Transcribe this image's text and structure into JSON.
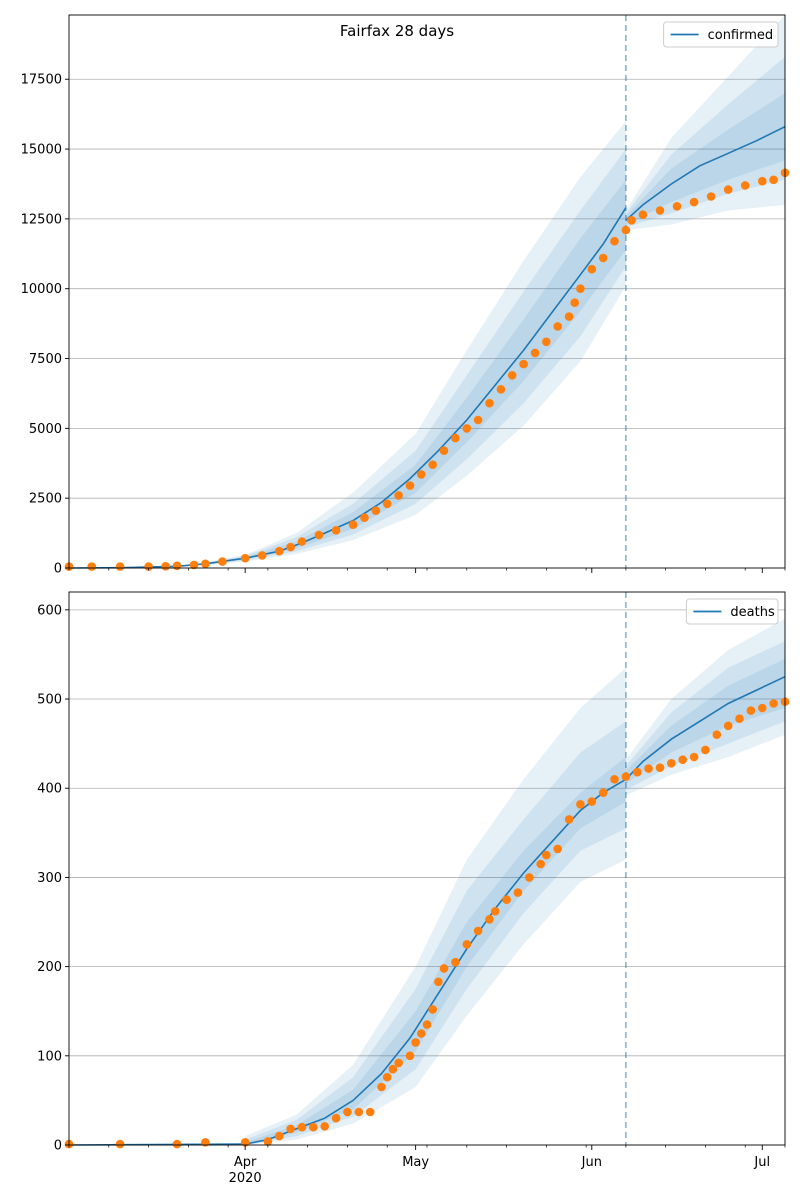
{
  "title": "Fairfax 28 days",
  "colors": {
    "model": "#1f77b4",
    "observed": "#ff7f0e",
    "band": "#1f77b4",
    "divider": "#1f77b4",
    "grid": "#b0b0b0"
  },
  "chart_data": [
    {
      "type": "line",
      "title": "Fairfax 28 days",
      "legend": {
        "label": "confirmed",
        "placement": "top-right"
      },
      "x_range": [
        "2020-03-01",
        "2020-07-05"
      ],
      "x_ticks": [
        {
          "date": "2020-04-01",
          "label": "Apr",
          "sublabel": "2020"
        },
        {
          "date": "2020-05-01",
          "label": "May",
          "sublabel": ""
        },
        {
          "date": "2020-06-01",
          "label": "Jun",
          "sublabel": ""
        },
        {
          "date": "2020-07-01",
          "label": "Jul",
          "sublabel": ""
        }
      ],
      "y_range": [
        0,
        19800
      ],
      "y_ticks": [
        {
          "value": 0,
          "label": "0"
        },
        {
          "value": 2500,
          "label": "2500"
        },
        {
          "value": 5000,
          "label": "5000"
        },
        {
          "value": 7500,
          "label": "7500"
        },
        {
          "value": 10000,
          "label": "10000"
        },
        {
          "value": 12500,
          "label": "12500"
        },
        {
          "value": 15000,
          "label": "15000"
        },
        {
          "value": 17500,
          "label": "17500"
        }
      ],
      "grid": "horizontal",
      "forecast_date": "2020-06-07",
      "model": {
        "fit": [
          [
            "2020-03-01",
            0
          ],
          [
            "2020-03-10",
            10
          ],
          [
            "2020-03-20",
            60
          ],
          [
            "2020-03-25",
            150
          ],
          [
            "2020-04-01",
            350
          ],
          [
            "2020-04-07",
            600
          ],
          [
            "2020-04-11",
            900
          ],
          [
            "2020-04-15",
            1250
          ],
          [
            "2020-04-20",
            1700
          ],
          [
            "2020-04-25",
            2350
          ],
          [
            "2020-04-30",
            3200
          ],
          [
            "2020-05-05",
            4200
          ],
          [
            "2020-05-10",
            5300
          ],
          [
            "2020-05-15",
            6550
          ],
          [
            "2020-05-20",
            7800
          ],
          [
            "2020-05-25",
            9150
          ],
          [
            "2020-05-30",
            10500
          ],
          [
            "2020-06-03",
            11600
          ],
          [
            "2020-06-07",
            12900
          ]
        ],
        "forecast": [
          [
            "2020-06-07",
            12450
          ],
          [
            "2020-06-10",
            13000
          ],
          [
            "2020-06-15",
            13750
          ],
          [
            "2020-06-20",
            14400
          ],
          [
            "2020-06-25",
            14850
          ],
          [
            "2020-06-30",
            15300
          ],
          [
            "2020-07-05",
            15800
          ]
        ],
        "bands": [
          {
            "segment": "fit",
            "x": [
              "2020-03-25",
              "2020-04-01",
              "2020-04-10",
              "2020-04-20",
              "2020-05-01",
              "2020-05-10",
              "2020-05-20",
              "2020-05-30",
              "2020-06-07"
            ],
            "inner": {
              "lo": [
                130,
                310,
                700,
                1400,
                2700,
                4500,
                6700,
                9200,
                11400
              ],
              "hi": [
                170,
                390,
                950,
                2000,
                3700,
                6100,
                8900,
                11800,
                13900
              ]
            },
            "mid": {
              "lo": [
                110,
                270,
                600,
                1200,
                2300,
                3900,
                5900,
                8300,
                10800
              ],
              "hi": [
                190,
                430,
                1100,
                2300,
                4200,
                6900,
                9900,
                12800,
                15000
              ]
            },
            "outer": {
              "lo": [
                90,
                230,
                500,
                1000,
                1900,
                3300,
                5100,
                7400,
                10100
              ],
              "hi": [
                210,
                470,
                1250,
                2700,
                4800,
                7800,
                11000,
                14000,
                16000
              ]
            }
          },
          {
            "segment": "forecast",
            "x": [
              "2020-06-07",
              "2020-06-15",
              "2020-06-25",
              "2020-07-05"
            ],
            "inner": {
              "lo": [
                12300,
                13100,
                13900,
                14600
              ],
              "hi": [
                12600,
                14300,
                15700,
                17000
              ]
            },
            "mid": {
              "lo": [
                12200,
                12700,
                13400,
                13900
              ],
              "hi": [
                12700,
                14800,
                16600,
                18300
              ]
            },
            "outer": {
              "lo": [
                12100,
                12300,
                12800,
                13000
              ],
              "hi": [
                12800,
                15400,
                17600,
                19800
              ]
            }
          }
        ]
      },
      "observed": [
        [
          "2020-03-01",
          50
        ],
        [
          "2020-03-05",
          50
        ],
        [
          "2020-03-10",
          50
        ],
        [
          "2020-03-15",
          50
        ],
        [
          "2020-03-18",
          60
        ],
        [
          "2020-03-20",
          80
        ],
        [
          "2020-03-23",
          110
        ],
        [
          "2020-03-25",
          150
        ],
        [
          "2020-03-28",
          230
        ],
        [
          "2020-04-01",
          350
        ],
        [
          "2020-04-04",
          450
        ],
        [
          "2020-04-07",
          600
        ],
        [
          "2020-04-09",
          750
        ],
        [
          "2020-04-11",
          950
        ],
        [
          "2020-04-14",
          1180
        ],
        [
          "2020-04-17",
          1350
        ],
        [
          "2020-04-20",
          1550
        ],
        [
          "2020-04-22",
          1800
        ],
        [
          "2020-04-24",
          2050
        ],
        [
          "2020-04-26",
          2300
        ],
        [
          "2020-04-28",
          2600
        ],
        [
          "2020-04-30",
          2950
        ],
        [
          "2020-05-02",
          3350
        ],
        [
          "2020-05-04",
          3700
        ],
        [
          "2020-05-06",
          4200
        ],
        [
          "2020-05-08",
          4650
        ],
        [
          "2020-05-10",
          5000
        ],
        [
          "2020-05-12",
          5300
        ],
        [
          "2020-05-14",
          5900
        ],
        [
          "2020-05-16",
          6400
        ],
        [
          "2020-05-18",
          6900
        ],
        [
          "2020-05-20",
          7300
        ],
        [
          "2020-05-22",
          7700
        ],
        [
          "2020-05-24",
          8100
        ],
        [
          "2020-05-26",
          8650
        ],
        [
          "2020-05-28",
          9000
        ],
        [
          "2020-05-29",
          9500
        ],
        [
          "2020-05-30",
          10000
        ],
        [
          "2020-06-01",
          10700
        ],
        [
          "2020-06-03",
          11100
        ],
        [
          "2020-06-05",
          11700
        ],
        [
          "2020-06-07",
          12100
        ],
        [
          "2020-06-08",
          12450
        ],
        [
          "2020-06-10",
          12650
        ],
        [
          "2020-06-13",
          12800
        ],
        [
          "2020-06-16",
          12950
        ],
        [
          "2020-06-19",
          13100
        ],
        [
          "2020-06-22",
          13300
        ],
        [
          "2020-06-25",
          13550
        ],
        [
          "2020-06-28",
          13700
        ],
        [
          "2020-07-01",
          13850
        ],
        [
          "2020-07-03",
          13900
        ],
        [
          "2020-07-05",
          14150
        ]
      ]
    },
    {
      "type": "line",
      "title": "",
      "legend": {
        "label": "deaths",
        "placement": "top-right"
      },
      "x_range": [
        "2020-03-01",
        "2020-07-05"
      ],
      "x_ticks": [
        {
          "date": "2020-04-01",
          "label": "Apr",
          "sublabel": "2020"
        },
        {
          "date": "2020-05-01",
          "label": "May",
          "sublabel": ""
        },
        {
          "date": "2020-06-01",
          "label": "Jun",
          "sublabel": ""
        },
        {
          "date": "2020-07-01",
          "label": "Jul",
          "sublabel": ""
        }
      ],
      "y_range": [
        0,
        620
      ],
      "y_ticks": [
        {
          "value": 0,
          "label": "0"
        },
        {
          "value": 100,
          "label": "100"
        },
        {
          "value": 200,
          "label": "200"
        },
        {
          "value": 300,
          "label": "300"
        },
        {
          "value": 400,
          "label": "400"
        },
        {
          "value": 500,
          "label": "500"
        },
        {
          "value": 600,
          "label": "600"
        }
      ],
      "grid": "horizontal",
      "forecast_date": "2020-06-07",
      "model": {
        "fit": [
          [
            "2020-03-01",
            0
          ],
          [
            "2020-04-01",
            1
          ],
          [
            "2020-04-05",
            6
          ],
          [
            "2020-04-10",
            18
          ],
          [
            "2020-04-15",
            30
          ],
          [
            "2020-04-20",
            50
          ],
          [
            "2020-04-25",
            80
          ],
          [
            "2020-04-30",
            120
          ],
          [
            "2020-05-05",
            170
          ],
          [
            "2020-05-10",
            220
          ],
          [
            "2020-05-15",
            265
          ],
          [
            "2020-05-20",
            305
          ],
          [
            "2020-05-25",
            340
          ],
          [
            "2020-05-30",
            375
          ],
          [
            "2020-06-03",
            395
          ],
          [
            "2020-06-07",
            410
          ]
        ],
        "forecast": [
          [
            "2020-06-07",
            410
          ],
          [
            "2020-06-10",
            430
          ],
          [
            "2020-06-15",
            455
          ],
          [
            "2020-06-20",
            475
          ],
          [
            "2020-06-25",
            495
          ],
          [
            "2020-06-30",
            510
          ],
          [
            "2020-07-05",
            525
          ]
        ],
        "bands": [
          {
            "segment": "fit",
            "x": [
              "2020-04-01",
              "2020-04-10",
              "2020-04-20",
              "2020-05-01",
              "2020-05-10",
              "2020-05-20",
              "2020-05-30",
              "2020-06-07"
            ],
            "inner": {
              "lo": [
                0,
                14,
                40,
                105,
                200,
                285,
                355,
                385
              ],
              "hi": [
                3,
                22,
                62,
                150,
                250,
                330,
                395,
                435
              ]
            },
            "mid": {
              "lo": [
                0,
                10,
                32,
                85,
                175,
                260,
                330,
                355
              ],
              "hi": [
                6,
                28,
                76,
                175,
                285,
                365,
                440,
                475
              ]
            },
            "outer": {
              "lo": [
                0,
                6,
                24,
                65,
                145,
                225,
                295,
                320
              ],
              "hi": [
                10,
                34,
                90,
                200,
                320,
                410,
                490,
                535
              ]
            }
          },
          {
            "segment": "forecast",
            "x": [
              "2020-06-07",
              "2020-06-15",
              "2020-06-25",
              "2020-07-05"
            ],
            "inner": {
              "lo": [
                405,
                440,
                470,
                490
              ],
              "hi": [
                420,
                470,
                515,
                545
              ]
            },
            "mid": {
              "lo": [
                398,
                425,
                450,
                475
              ],
              "hi": [
                425,
                485,
                535,
                565
              ]
            },
            "outer": {
              "lo": [
                392,
                415,
                435,
                460
              ],
              "hi": [
                432,
                500,
                555,
                590
              ]
            }
          }
        ]
      },
      "observed": [
        [
          "2020-03-01",
          1
        ],
        [
          "2020-03-10",
          1
        ],
        [
          "2020-03-20",
          1
        ],
        [
          "2020-03-25",
          3
        ],
        [
          "2020-04-01",
          3
        ],
        [
          "2020-04-05",
          4
        ],
        [
          "2020-04-07",
          10
        ],
        [
          "2020-04-09",
          18
        ],
        [
          "2020-04-11",
          20
        ],
        [
          "2020-04-13",
          20
        ],
        [
          "2020-04-15",
          21
        ],
        [
          "2020-04-17",
          30
        ],
        [
          "2020-04-19",
          37
        ],
        [
          "2020-04-21",
          37
        ],
        [
          "2020-04-23",
          37
        ],
        [
          "2020-04-25",
          65
        ],
        [
          "2020-04-26",
          76
        ],
        [
          "2020-04-27",
          85
        ],
        [
          "2020-04-28",
          92
        ],
        [
          "2020-04-30",
          100
        ],
        [
          "2020-05-01",
          115
        ],
        [
          "2020-05-02",
          125
        ],
        [
          "2020-05-03",
          135
        ],
        [
          "2020-05-04",
          152
        ],
        [
          "2020-05-05",
          183
        ],
        [
          "2020-05-06",
          198
        ],
        [
          "2020-05-08",
          205
        ],
        [
          "2020-05-10",
          225
        ],
        [
          "2020-05-12",
          240
        ],
        [
          "2020-05-14",
          253
        ],
        [
          "2020-05-15",
          262
        ],
        [
          "2020-05-17",
          275
        ],
        [
          "2020-05-19",
          283
        ],
        [
          "2020-05-21",
          300
        ],
        [
          "2020-05-23",
          315
        ],
        [
          "2020-05-24",
          325
        ],
        [
          "2020-05-26",
          332
        ],
        [
          "2020-05-28",
          365
        ],
        [
          "2020-05-30",
          382
        ],
        [
          "2020-06-01",
          385
        ],
        [
          "2020-06-03",
          395
        ],
        [
          "2020-06-05",
          410
        ],
        [
          "2020-06-07",
          413
        ],
        [
          "2020-06-09",
          418
        ],
        [
          "2020-06-11",
          422
        ],
        [
          "2020-06-13",
          423
        ],
        [
          "2020-06-15",
          428
        ],
        [
          "2020-06-17",
          432
        ],
        [
          "2020-06-19",
          435
        ],
        [
          "2020-06-21",
          443
        ],
        [
          "2020-06-23",
          460
        ],
        [
          "2020-06-25",
          470
        ],
        [
          "2020-06-27",
          478
        ],
        [
          "2020-06-29",
          487
        ],
        [
          "2020-07-01",
          490
        ],
        [
          "2020-07-03",
          495
        ],
        [
          "2020-07-05",
          497
        ]
      ]
    }
  ]
}
